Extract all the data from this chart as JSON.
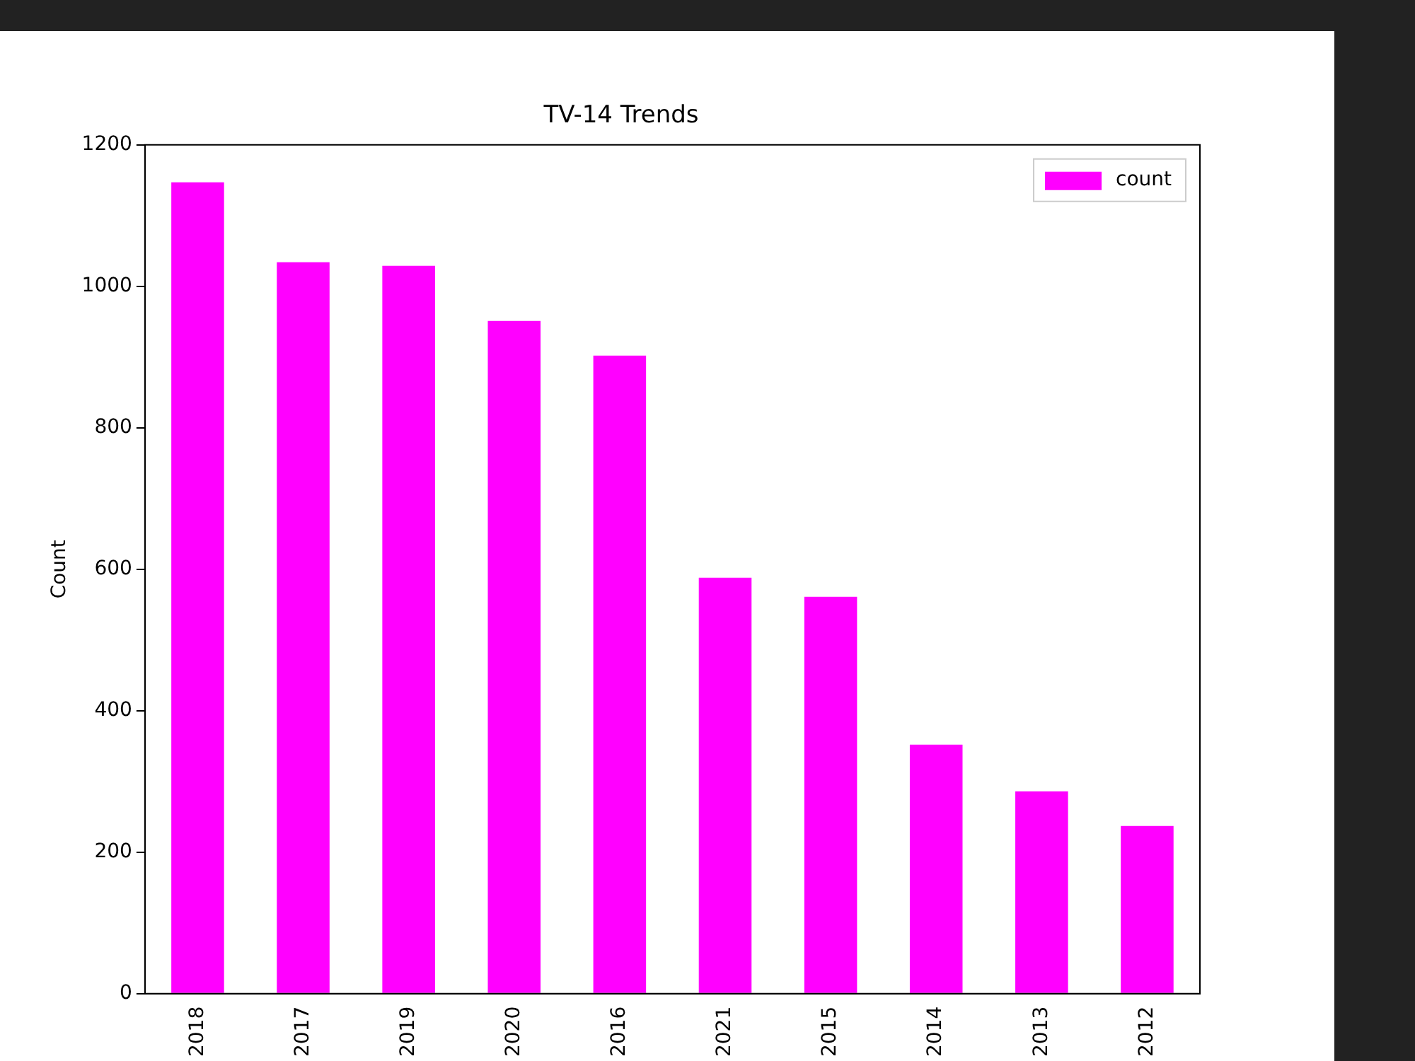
{
  "chart_data": {
    "type": "bar",
    "title": "TV-14 Trends",
    "ylabel": "Count",
    "categories": [
      "2018",
      "2017",
      "2019",
      "2020",
      "2016",
      "2021",
      "2015",
      "2014",
      "2013",
      "2012"
    ],
    "series": [
      {
        "name": "count",
        "color": "#ff00ff",
        "values": [
          1147,
          1034,
          1029,
          951,
          902,
          588,
          561,
          352,
          286,
          237
        ]
      }
    ],
    "ylim": [
      0,
      1200
    ],
    "yticks": [
      0,
      200,
      400,
      600,
      800,
      1000,
      1200
    ],
    "grid": false,
    "legend": "top right"
  }
}
